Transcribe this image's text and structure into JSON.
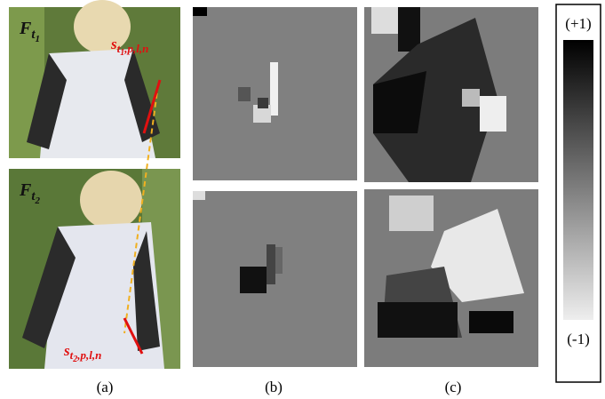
{
  "panels": [
    {
      "label": "(a)",
      "frames": [
        {
          "main": "F",
          "sub": "t",
          "subsub": "1"
        },
        {
          "main": "F",
          "sub": "t",
          "subsub": "2"
        }
      ],
      "points": [
        {
          "main": "s",
          "sub": "t",
          "subsub": "1",
          "suffix": ",p,l,n"
        },
        {
          "main": "s",
          "sub": "t",
          "subsub": "2",
          "suffix": ",p,l,n"
        }
      ]
    },
    {
      "label": "(b)"
    },
    {
      "label": "(c)"
    }
  ],
  "colorbar": {
    "top": "(+1)",
    "bottom": "(-1)"
  }
}
